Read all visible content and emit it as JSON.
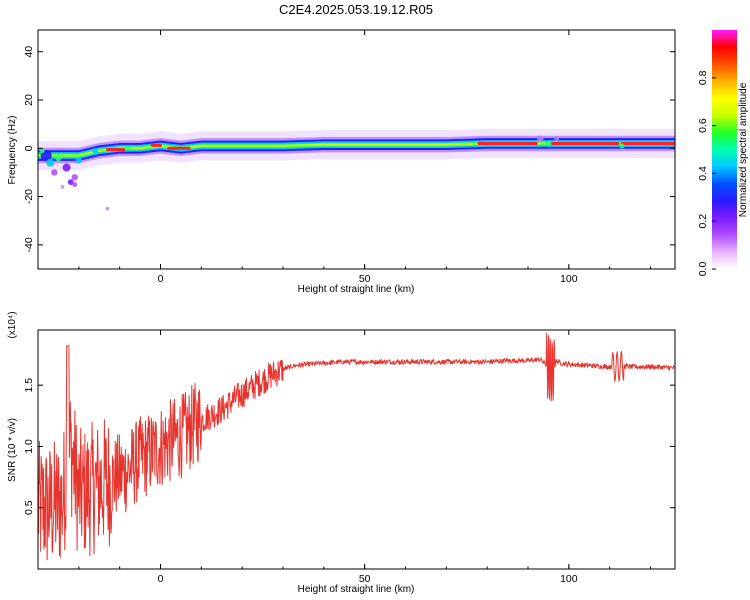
{
  "title": "C2E4.2025.053.19.12.R05",
  "colors": {
    "snr_line": "#e8342e",
    "trace_core": "#ff2020",
    "colorbar": [
      "#ffffff",
      "#e6b3ff",
      "#b14dff",
      "#7a1cff",
      "#2a1aff",
      "#0050ff",
      "#00c8ff",
      "#00ffb0",
      "#22ff22",
      "#c8ff00",
      "#ffff00",
      "#ffb000",
      "#ff5000",
      "#ff0000",
      "#ff1aff"
    ]
  },
  "chart_data": [
    {
      "type": "heatmap",
      "xlabel": "Height of straight line (km)",
      "ylabel": "Frequency (Hz)",
      "xlim": [
        -30,
        126
      ],
      "ylim": [
        -50,
        49
      ],
      "xticks": [
        0,
        50,
        100
      ],
      "yticks": [
        -40,
        -20,
        0,
        20,
        40
      ],
      "xtick_labels": [
        "0",
        "50",
        "100"
      ],
      "ytick_labels": [
        "-40",
        "-20",
        "0",
        "20",
        "40"
      ],
      "colorbar": {
        "label": "Normalized spectral amplitude",
        "range": [
          0.0,
          1.0
        ],
        "ticks": [
          0.0,
          0.2,
          0.4,
          0.6,
          0.8
        ],
        "tick_labels": [
          "0.0",
          "0.2",
          "0.4",
          "0.6",
          "0.8"
        ]
      },
      "ridge": {
        "x": [
          -30,
          -25,
          -20,
          -15,
          -10,
          -5,
          0,
          5,
          10,
          20,
          30,
          40,
          50,
          60,
          70,
          80,
          90,
          95,
          100,
          110,
          120,
          126
        ],
        "freq": [
          -3,
          -3,
          -3,
          -1,
          0,
          0,
          1,
          0,
          1,
          1,
          1,
          1.5,
          1.5,
          1.5,
          1.5,
          2,
          2,
          2,
          2,
          2,
          2,
          2
        ]
      }
    },
    {
      "type": "line",
      "xlabel": "Height of straight line (km)",
      "ylabel": "SNR (10 * v/v)",
      "yscale_label": "(x10⁴)",
      "xlim": [
        -30,
        126
      ],
      "ylim": [
        0,
        1.95
      ],
      "xticks": [
        0,
        50,
        100
      ],
      "yticks": [
        0.5,
        1.0,
        1.5
      ],
      "xtick_labels": [
        "0",
        "50",
        "100"
      ],
      "ytick_labels": [
        "0.5",
        "1.0",
        "1.5"
      ],
      "series": [
        {
          "x": [
            -30,
            -27,
            -24,
            -22,
            -20,
            -17,
            -14,
            -11,
            -8,
            -5,
            -2,
            0,
            3,
            6,
            9,
            12,
            15,
            18,
            21,
            24,
            27,
            30,
            33,
            36,
            40,
            45,
            50,
            55,
            60,
            65,
            70,
            75,
            80,
            85,
            90,
            93,
            95,
            96,
            97,
            98,
            100,
            105,
            110,
            112,
            113,
            115,
            120,
            126
          ],
          "values": [
            0.5,
            0.5,
            0.55,
            1.0,
            0.6,
            0.65,
            0.7,
            0.75,
            0.8,
            0.9,
            0.95,
            1.0,
            1.05,
            1.1,
            1.2,
            1.25,
            1.3,
            1.38,
            1.45,
            1.52,
            1.58,
            1.63,
            1.66,
            1.67,
            1.68,
            1.69,
            1.69,
            1.69,
            1.69,
            1.69,
            1.69,
            1.69,
            1.69,
            1.7,
            1.7,
            1.71,
            1.65,
            1.6,
            1.7,
            1.68,
            1.67,
            1.66,
            1.65,
            1.65,
            1.66,
            1.65,
            1.65,
            1.64
          ]
        }
      ]
    }
  ]
}
